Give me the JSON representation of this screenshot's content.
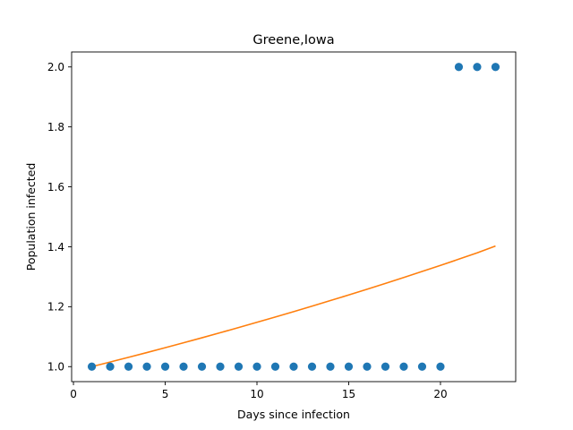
{
  "chart_data": {
    "type": "scatter",
    "title": "Greene,Iowa",
    "xlabel": "Days since infection",
    "ylabel": "Population infected",
    "xlim": [
      -0.1,
      24.1
    ],
    "ylim": [
      0.95,
      2.05
    ],
    "xticks": [
      0,
      5,
      10,
      15,
      20
    ],
    "yticks": [
      1.0,
      1.2,
      1.4,
      1.6,
      1.8,
      2.0
    ],
    "xtick_labels": [
      "0",
      "5",
      "10",
      "15",
      "20"
    ],
    "ytick_labels": [
      "1.0",
      "1.2",
      "1.4",
      "1.6",
      "1.8",
      "2.0"
    ],
    "grid": false,
    "series": [
      {
        "kind": "scatter",
        "color": "#1f77b4",
        "x": [
          1,
          2,
          3,
          4,
          5,
          6,
          7,
          8,
          9,
          10,
          11,
          12,
          13,
          14,
          15,
          16,
          17,
          18,
          19,
          20,
          21,
          22,
          23
        ],
        "y": [
          1,
          1,
          1,
          1,
          1,
          1,
          1,
          1,
          1,
          1,
          1,
          1,
          1,
          1,
          1,
          1,
          1,
          1,
          1,
          1,
          2,
          2,
          2
        ]
      },
      {
        "kind": "line",
        "color": "#ff7f0e",
        "x": [
          1,
          2,
          3,
          4,
          5,
          6,
          7,
          8,
          9,
          10,
          11,
          12,
          13,
          14,
          15,
          16,
          17,
          18,
          19,
          20,
          21,
          22,
          23
        ],
        "y": [
          1.0,
          1.0154,
          1.0311,
          1.047,
          1.0632,
          1.0796,
          1.0963,
          1.1132,
          1.1304,
          1.1479,
          1.1656,
          1.1836,
          1.2018,
          1.2204,
          1.2392,
          1.2584,
          1.2778,
          1.2975,
          1.3176,
          1.3379,
          1.3586,
          1.3796,
          1.4025
        ]
      }
    ]
  }
}
